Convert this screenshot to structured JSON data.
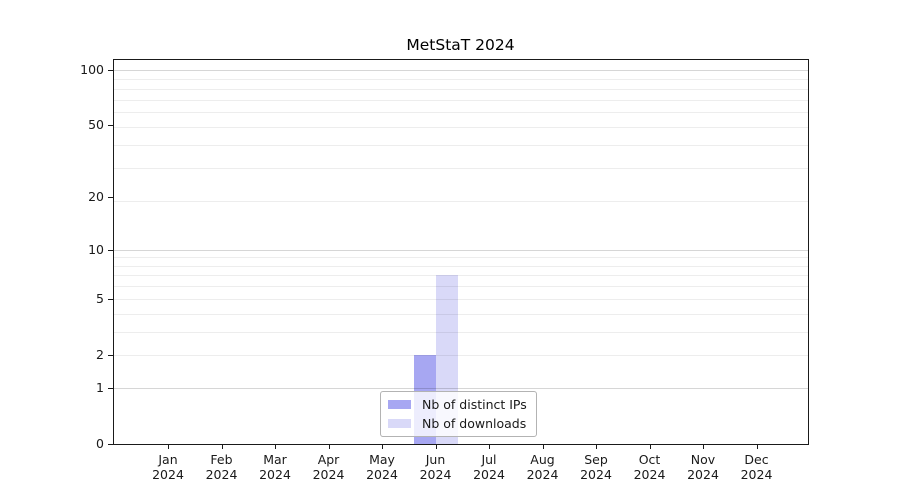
{
  "chart_data": {
    "type": "bar",
    "title": "MetStaT 2024",
    "x": {
      "categories": [
        {
          "month": "Jan",
          "year": "2024"
        },
        {
          "month": "Feb",
          "year": "2024"
        },
        {
          "month": "Mar",
          "year": "2024"
        },
        {
          "month": "Apr",
          "year": "2024"
        },
        {
          "month": "May",
          "year": "2024"
        },
        {
          "month": "Jun",
          "year": "2024"
        },
        {
          "month": "Jul",
          "year": "2024"
        },
        {
          "month": "Aug",
          "year": "2024"
        },
        {
          "month": "Sep",
          "year": "2024"
        },
        {
          "month": "Oct",
          "year": "2024"
        },
        {
          "month": "Nov",
          "year": "2024"
        },
        {
          "month": "Dec",
          "year": "2024"
        }
      ]
    },
    "y": {
      "ticks": [
        0,
        1,
        2,
        5,
        10,
        20,
        50,
        100
      ],
      "scale": "log(1+y)",
      "lim": [
        0,
        115
      ],
      "major_gridlines": [
        1,
        10,
        100
      ],
      "minor_gridlines": [
        2,
        3,
        4,
        5,
        6,
        7,
        8,
        9,
        19,
        29,
        39,
        49,
        59,
        69,
        79,
        89
      ]
    },
    "series": [
      {
        "name": "Nb of distinct IPs",
        "color": "#a7a7f2",
        "values": [
          0,
          0,
          0,
          0,
          0,
          2,
          0,
          0,
          0,
          0,
          0,
          0
        ]
      },
      {
        "name": "Nb of downloads",
        "color": "#d9d9f8",
        "values": [
          0,
          0,
          0,
          0,
          0,
          7,
          0,
          0,
          0,
          0,
          0,
          0
        ]
      }
    ],
    "legend": {
      "position": "bottom-center",
      "items": [
        "Nb of distinct IPs",
        "Nb of downloads"
      ]
    },
    "grid": true,
    "colors": {
      "axis": "#1a1a1a",
      "legend_border": "#b3b3b3"
    }
  }
}
